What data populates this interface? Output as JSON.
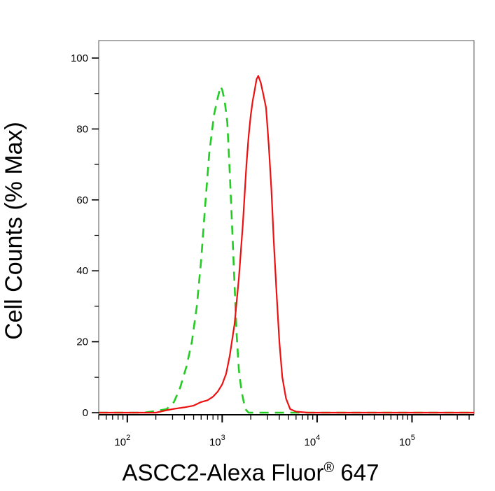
{
  "chart_data": {
    "type": "line",
    "title": "",
    "xlabel": "ASCC2-Alexa Fluor",
    "xlabel_superscript": "®",
    "xlabel_suffix": " 647",
    "ylabel": "Cell Counts (% Max)",
    "x_scale": "log",
    "xlim": [
      50,
      450000
    ],
    "ylim": [
      0,
      100
    ],
    "x_tick_labels": [
      {
        "base": "10",
        "exp": "2",
        "value": 100
      },
      {
        "base": "10",
        "exp": "3",
        "value": 1000
      },
      {
        "base": "10",
        "exp": "4",
        "value": 10000
      },
      {
        "base": "10",
        "exp": "5",
        "value": 100000
      }
    ],
    "y_ticks": [
      0,
      20,
      40,
      60,
      80,
      100
    ],
    "grid": false,
    "legend": "none",
    "series": [
      {
        "color": "#22cc22",
        "dash": "dashed",
        "points": [
          [
            50,
            0
          ],
          [
            150,
            0
          ],
          [
            200,
            0.5
          ],
          [
            260,
            1
          ],
          [
            310,
            3
          ],
          [
            360,
            7
          ],
          [
            420,
            13
          ],
          [
            480,
            20
          ],
          [
            540,
            30
          ],
          [
            600,
            43
          ],
          [
            660,
            58
          ],
          [
            730,
            73
          ],
          [
            820,
            84
          ],
          [
            900,
            89
          ],
          [
            960,
            92
          ],
          [
            1000,
            91
          ],
          [
            1060,
            88
          ],
          [
            1130,
            82
          ],
          [
            1200,
            68
          ],
          [
            1270,
            53
          ],
          [
            1340,
            38
          ],
          [
            1420,
            22
          ],
          [
            1500,
            12
          ],
          [
            1600,
            6
          ],
          [
            1750,
            1
          ],
          [
            1900,
            0
          ],
          [
            5000,
            0
          ],
          [
            450000,
            0
          ]
        ]
      },
      {
        "color": "#ee1111",
        "dash": "solid",
        "points": [
          [
            50,
            0
          ],
          [
            200,
            0
          ],
          [
            250,
            0.6
          ],
          [
            300,
            1
          ],
          [
            400,
            1.5
          ],
          [
            500,
            2
          ],
          [
            600,
            3
          ],
          [
            700,
            3.5
          ],
          [
            800,
            4.5
          ],
          [
            900,
            6
          ],
          [
            1000,
            8
          ],
          [
            1100,
            11
          ],
          [
            1200,
            16
          ],
          [
            1350,
            25
          ],
          [
            1500,
            38
          ],
          [
            1650,
            53
          ],
          [
            1800,
            70
          ],
          [
            1900,
            78
          ],
          [
            2000,
            84
          ],
          [
            2100,
            88
          ],
          [
            2200,
            91
          ],
          [
            2300,
            94
          ],
          [
            2400,
            95
          ],
          [
            2550,
            93
          ],
          [
            2700,
            90
          ],
          [
            2900,
            86
          ],
          [
            3100,
            75
          ],
          [
            3300,
            63
          ],
          [
            3500,
            48
          ],
          [
            3750,
            33
          ],
          [
            4000,
            20
          ],
          [
            4300,
            10
          ],
          [
            4700,
            4
          ],
          [
            5200,
            1
          ],
          [
            6000,
            0.3
          ],
          [
            8000,
            0
          ],
          [
            450000,
            0
          ]
        ]
      }
    ]
  }
}
